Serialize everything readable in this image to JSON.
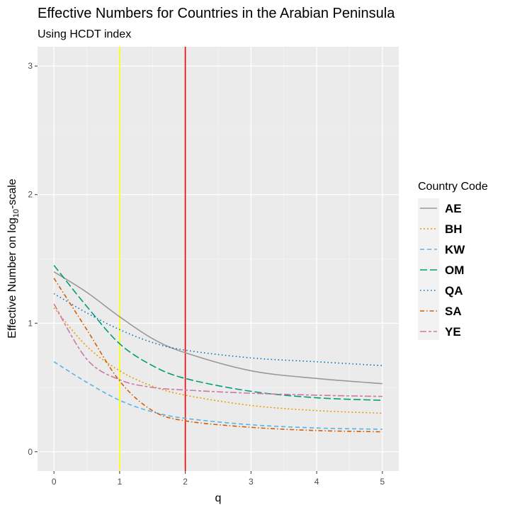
{
  "chart_data": {
    "type": "line",
    "title": "Effective Numbers for Countries in the Arabian Peninsula",
    "subtitle": "Using HCDT index",
    "xlabel": "q",
    "ylabel": "Effective Number on log",
    "ylabel_subscript": "10",
    "ylabel_suffix": "-scale",
    "xlim": [
      -0.25,
      5.25
    ],
    "ylim": [
      -0.15,
      3.15
    ],
    "x_ticks": [
      0,
      1,
      2,
      3,
      4,
      5
    ],
    "y_ticks": [
      0,
      1,
      2,
      3
    ],
    "grid": true,
    "log_scale_y": true,
    "legend": {
      "title": "Country Code",
      "position": "right"
    },
    "reference_lines": [
      {
        "x": 1,
        "color": "#ffff00"
      },
      {
        "x": 2,
        "color": "#ff0000"
      }
    ],
    "x": [
      0,
      0.5,
      1,
      1.5,
      2,
      3,
      4,
      5
    ],
    "series": [
      {
        "name": "AE",
        "color": "#999999",
        "dash": "solid",
        "values": [
          1.4,
          1.24,
          1.05,
          0.88,
          0.77,
          0.63,
          0.57,
          0.53
        ]
      },
      {
        "name": "BH",
        "color": "#e69f00",
        "dash": "dotted",
        "values": [
          1.12,
          0.82,
          0.63,
          0.51,
          0.44,
          0.36,
          0.32,
          0.3
        ]
      },
      {
        "name": "KW",
        "color": "#56b4e9",
        "dash": "dashed",
        "values": [
          0.7,
          0.54,
          0.4,
          0.31,
          0.26,
          0.21,
          0.185,
          0.175
        ]
      },
      {
        "name": "OM",
        "color": "#009e73",
        "dash": "longdash",
        "values": [
          1.45,
          1.13,
          0.84,
          0.67,
          0.57,
          0.47,
          0.42,
          0.4
        ]
      },
      {
        "name": "QA",
        "color": "#0072b2",
        "dash": "dotted-fine",
        "values": [
          1.23,
          1.08,
          0.95,
          0.85,
          0.79,
          0.73,
          0.7,
          0.67
        ]
      },
      {
        "name": "SA",
        "color": "#d55e00",
        "dash": "dotdash",
        "values": [
          1.35,
          0.95,
          0.55,
          0.32,
          0.24,
          0.19,
          0.165,
          0.155
        ]
      },
      {
        "name": "YE",
        "color": "#cc79a7",
        "dash": "twodash",
        "values": [
          1.15,
          0.72,
          0.56,
          0.5,
          0.48,
          0.455,
          0.44,
          0.43
        ]
      }
    ]
  }
}
